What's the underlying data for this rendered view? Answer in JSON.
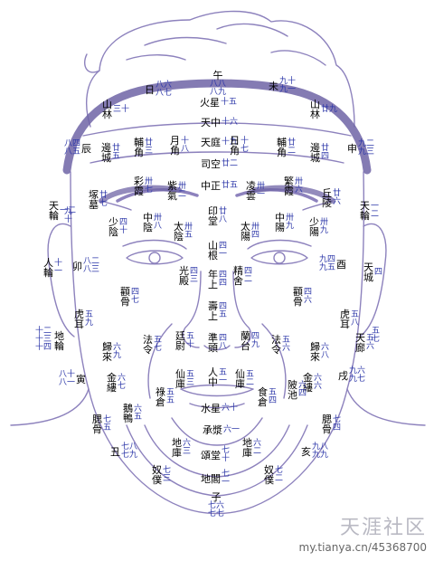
{
  "labels": [
    {
      "id": "wu",
      "name": "午",
      "age": "八八\n八九",
      "mode": "stack"
    },
    {
      "id": "ri",
      "name": "日",
      "age": "八六\n八七",
      "mode": "right"
    },
    {
      "id": "wei",
      "name": "未",
      "age": "九十\n九一",
      "mode": "right"
    },
    {
      "id": "huoxing",
      "name": "火星",
      "age": "十五",
      "mode": "right"
    },
    {
      "id": "shanlin-l",
      "name": "山\n林",
      "age": "三十",
      "mode": "right"
    },
    {
      "id": "shanlin-r",
      "name": "山\n林",
      "age": "廿九",
      "mode": "right"
    },
    {
      "id": "tianzhong",
      "name": "天中",
      "age": "十六",
      "mode": "right"
    },
    {
      "id": "tianting",
      "name": "天庭",
      "age": "十九",
      "mode": "right"
    },
    {
      "id": "yuejiao",
      "name": "月\n角",
      "age": "十\n八",
      "mode": "right"
    },
    {
      "id": "rijiao",
      "name": "日\n角",
      "age": "十\n七",
      "mode": "right"
    },
    {
      "id": "fujiao-l",
      "name": "輔\n角",
      "age": "廿\n三",
      "mode": "right"
    },
    {
      "id": "fujiao-r",
      "name": "輔\n角",
      "age": "廿\n二",
      "mode": "right"
    },
    {
      "id": "chen",
      "name": "辰",
      "age": "八四\n八五",
      "mode": "left"
    },
    {
      "id": "shen",
      "name": "申",
      "age": "九二\n九三",
      "mode": "right"
    },
    {
      "id": "biancheng-l",
      "name": "邊\n城",
      "age": "廿\n五",
      "mode": "right"
    },
    {
      "id": "biancheng-r",
      "name": "邊\n城",
      "age": "廿\n四",
      "mode": "right"
    },
    {
      "id": "sikong",
      "name": "司空",
      "age": "廿二",
      "mode": "right"
    },
    {
      "id": "caixia",
      "name": "彩\n霞",
      "age": "卅\n七",
      "mode": "right"
    },
    {
      "id": "ziqi",
      "name": "紫\n氣",
      "age": "卅\n二",
      "mode": "right"
    },
    {
      "id": "zhongzheng",
      "name": "中正",
      "age": "廿五",
      "mode": "right"
    },
    {
      "id": "lingyun",
      "name": "凌\n雲",
      "age": "卅\n一",
      "mode": "right"
    },
    {
      "id": "fanxia",
      "name": "繁\n霞",
      "age": "卅\n六",
      "mode": "right"
    },
    {
      "id": "qiuling",
      "name": "丘\n陵",
      "age": "廿\n六",
      "mode": "right"
    },
    {
      "id": "zhongmu",
      "name": "塚\n墓",
      "age": "廿\n七",
      "mode": "right"
    },
    {
      "id": "tianlun-l",
      "name": "天\n輪",
      "age": "一二",
      "mode": "right"
    },
    {
      "id": "tianlun-r",
      "name": "天\n輪",
      "age": "一\n二",
      "mode": "right"
    },
    {
      "id": "jiulabel",
      "name": "",
      "age": "九\n十",
      "mode": "right"
    },
    {
      "id": "yintang",
      "name": "印\n堂",
      "age": "廿\n八",
      "mode": "right"
    },
    {
      "id": "zhongyin",
      "name": "中\n陰",
      "age": "卅\n八",
      "mode": "right"
    },
    {
      "id": "taiyin",
      "name": "太\n陰",
      "age": "卅\n五",
      "mode": "right"
    },
    {
      "id": "taiyang",
      "name": "太\n陽",
      "age": "卅\n四",
      "mode": "right"
    },
    {
      "id": "zhongyang",
      "name": "中\n陽",
      "age": "卅\n九",
      "mode": "right"
    },
    {
      "id": "shaoyin",
      "name": "少\n陰",
      "age": "四\n十",
      "mode": "right"
    },
    {
      "id": "shaoyang",
      "name": "少\n陽",
      "age": "卅\n九",
      "mode": "right"
    },
    {
      "id": "shangen",
      "name": "山\n根",
      "age": "四\n一",
      "mode": "right"
    },
    {
      "id": "renlun",
      "name": "人\n輪",
      "age": "十\n一",
      "mode": "right"
    },
    {
      "id": "mao",
      "name": "卯",
      "age": "八二\n八三",
      "mode": "right"
    },
    {
      "id": "you",
      "name": "酉",
      "age": "九四\n九五",
      "mode": "left"
    },
    {
      "id": "tiancheng",
      "name": "天\n城",
      "age": "四",
      "mode": "right"
    },
    {
      "id": "guangdian",
      "name": "光\n殿",
      "age": "四\n三",
      "mode": "right"
    },
    {
      "id": "jingshe",
      "name": "精\n舍",
      "age": "四\n二",
      "mode": "right"
    },
    {
      "id": "nianshang",
      "name": "年\n上",
      "age": "四\n四",
      "mode": "right"
    },
    {
      "id": "quangu-l",
      "name": "顴\n骨",
      "age": "四\n七",
      "mode": "right"
    },
    {
      "id": "quangu-r",
      "name": "顴\n骨",
      "age": "四\n六",
      "mode": "right"
    },
    {
      "id": "shoushang",
      "name": "壽\n上",
      "age": "四\n五",
      "mode": "right"
    },
    {
      "id": "huer-l",
      "name": "虎\n耳",
      "age": "五\n九",
      "mode": "right"
    },
    {
      "id": "huer-r",
      "name": "虎\n耳",
      "age": "五\n八",
      "mode": "right"
    },
    {
      "id": "dige",
      "name": "",
      "age": "十二\n十三\n十四",
      "mode": "right"
    },
    {
      "id": "dilun",
      "name": "地\n輪",
      "age": "",
      "mode": "right"
    },
    {
      "id": "tianlang",
      "name": "天\n廊",
      "age": "五\n六",
      "mode": "right"
    },
    {
      "id": "qilable",
      "name": "",
      "age": "五\n七",
      "mode": "right"
    },
    {
      "id": "guilai-l",
      "name": "歸\n來",
      "age": "六\n九",
      "mode": "right"
    },
    {
      "id": "guilai-r",
      "name": "歸\n來",
      "age": "六\n八",
      "mode": "right"
    },
    {
      "id": "faling-l",
      "name": "法\n令",
      "age": "五\n七",
      "mode": "right"
    },
    {
      "id": "faling-r",
      "name": "法\n令",
      "age": "五\n六",
      "mode": "right"
    },
    {
      "id": "tingwei",
      "name": "廷\n尉",
      "age": "五\n十",
      "mode": "right"
    },
    {
      "id": "zhuntou",
      "name": "準\n頭",
      "age": "四\n八",
      "mode": "right"
    },
    {
      "id": "lantai",
      "name": "蘭\n台",
      "age": "四\n九",
      "mode": "right"
    },
    {
      "id": "yin",
      "name": "寅",
      "age": "八十\n八一",
      "mode": "left"
    },
    {
      "id": "xu",
      "name": "戌",
      "age": "九六\n九七",
      "mode": "right"
    },
    {
      "id": "jinlv-l",
      "name": "金\n縷",
      "age": "六\n七",
      "mode": "right"
    },
    {
      "id": "jinlv-r",
      "name": "金\n縷",
      "age": "六\n六",
      "mode": "right"
    },
    {
      "id": "xianku-l",
      "name": "仙\n庫",
      "age": "五\n三",
      "mode": "right"
    },
    {
      "id": "xianku-r",
      "name": "仙\n庫",
      "age": "五\n二",
      "mode": "right"
    },
    {
      "id": "renzhong",
      "name": "人\n中",
      "age": "五\n一",
      "mode": "right"
    },
    {
      "id": "lucang",
      "name": "祿\n倉",
      "age": "五\n五",
      "mode": "right"
    },
    {
      "id": "shicang",
      "name": "食\n倉",
      "age": "五\n四",
      "mode": "right"
    },
    {
      "id": "bochi",
      "name": "陂\n池",
      "age": "六\n四",
      "mode": "right"
    },
    {
      "id": "eya",
      "name": "鵝\n鴨",
      "age": "六\n五",
      "mode": "right"
    },
    {
      "id": "shuixing",
      "name": "水星",
      "age": "六十",
      "mode": "right"
    },
    {
      "id": "chengjiang",
      "name": "承漿",
      "age": "六一",
      "mode": "right"
    },
    {
      "id": "saigu-l",
      "name": "腮\n骨",
      "age": "七\n五",
      "mode": "right"
    },
    {
      "id": "saigu-r",
      "name": "腮\n骨",
      "age": "七\n四",
      "mode": "right"
    },
    {
      "id": "chou",
      "name": "丑",
      "age": "七八\n七九",
      "mode": "right"
    },
    {
      "id": "hai",
      "name": "亥",
      "age": "九八\n九九",
      "mode": "right"
    },
    {
      "id": "diku-l",
      "name": "地\n庫",
      "age": "六\n三",
      "mode": "right"
    },
    {
      "id": "diku-r",
      "name": "地\n庫",
      "age": "六\n二",
      "mode": "right"
    },
    {
      "id": "songtang",
      "name": "頌堂",
      "age": "七\n十",
      "mode": "right"
    },
    {
      "id": "nupu-l",
      "name": "奴\n僕",
      "age": "七\n三",
      "mode": "right"
    },
    {
      "id": "nupu-r",
      "name": "奴\n僕",
      "age": "七\n二",
      "mode": "right"
    },
    {
      "id": "dige2",
      "name": "地閣",
      "age": "七\n一",
      "mode": "right"
    },
    {
      "id": "zi",
      "name": "子",
      "age": "七六\n七七",
      "mode": "stack"
    }
  ],
  "watermark": {
    "site": "天涯社区",
    "url": "my.tianya.cn/45368700"
  },
  "colors": {
    "line": "#8d82bd",
    "text": "#000000",
    "age": "#2b36a8",
    "band": "#6f64a6"
  }
}
